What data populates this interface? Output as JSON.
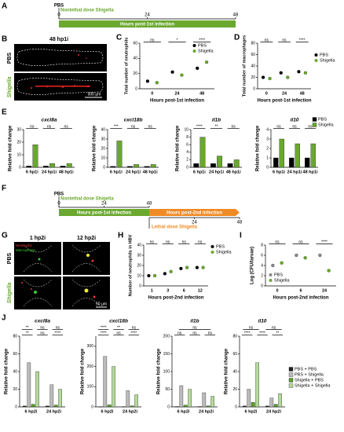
{
  "panel_letters": [
    "A",
    "B",
    "C",
    "D",
    "E",
    "F",
    "G",
    "H",
    "I",
    "J"
  ],
  "timeline_a": {
    "treatment": "PBS",
    "dose": "Nonlethal dose Shigella",
    "range": [
      0,
      48
    ],
    "ticks": [
      0,
      24,
      48
    ],
    "phase": "Hours post-1st infection"
  },
  "image_b": {
    "title": "48 hp1i",
    "rows": [
      "PBS",
      "Shigella"
    ],
    "scale": "500 µm"
  },
  "timeline_f": {
    "treatment": "PBS",
    "dose": "Nonlethal dose Shigella",
    "range": [
      0,
      48
    ],
    "ticks": [
      0,
      24,
      48
    ],
    "phase": "Hours post-1st infection",
    "dose2": "Lethal dose Shigella",
    "ticks2": [
      24,
      48
    ],
    "phase2": "Hours post-2nd infection"
  },
  "image_g": {
    "cols": [
      "1 hp2i",
      "12 hp2i"
    ],
    "rows": [
      "PBS",
      "Shigella"
    ],
    "stains": [
      "Neutrophil",
      "Macrophage"
    ],
    "scale": "50 µm"
  },
  "chart_data": [
    {
      "type": "scatter",
      "ylabel": "Total number of neutrophils",
      "xlabel": "Hours post-1st infection",
      "categories": [
        "0",
        "24",
        "48"
      ],
      "series": [
        {
          "name": "PBS",
          "color": "#000000",
          "values": [
            10,
            22,
            27
          ]
        },
        {
          "name": "Shigella",
          "color": "#6aa82e",
          "values": [
            8,
            18,
            35
          ]
        }
      ],
      "ylim": [
        0,
        60
      ],
      "yticks": [
        0,
        20,
        40,
        60
      ],
      "annotations": [
        "ns",
        "*",
        "****"
      ],
      "legend": true
    },
    {
      "type": "scatter",
      "ylabel": "Total number of macrophages",
      "xlabel": "Hours post-1st infection",
      "categories": [
        "0",
        "24",
        "48"
      ],
      "series": [
        {
          "name": "PBS",
          "color": "#000000",
          "values": [
            20,
            28,
            30
          ]
        },
        {
          "name": "Shigella",
          "color": "#6aa82e",
          "values": [
            18,
            20,
            28
          ]
        }
      ],
      "ylim": [
        0,
        80
      ],
      "yticks": [
        0,
        20,
        40,
        60,
        80
      ],
      "annotations": [
        "ns",
        "ns",
        "****"
      ],
      "legend": true
    },
    {
      "type": "bar",
      "title": "cxcl8a",
      "ylabel": "Relative fold change",
      "categories": [
        "6 hp1i",
        "24 hp1i",
        "48 hp1i"
      ],
      "series": [
        {
          "name": "PBS",
          "color": "#000000",
          "values": [
            1,
            1,
            1
          ]
        },
        {
          "name": "Shigella",
          "color": "#6aa82e",
          "values": [
            18,
            3,
            3
          ]
        }
      ],
      "ylim": [
        0,
        30
      ],
      "yticks": [
        0,
        10,
        20,
        30
      ],
      "annotations": [
        "ns",
        "ns",
        "ns"
      ]
    },
    {
      "type": "bar",
      "title": "cxcl18b",
      "ylabel": "Relative fold change",
      "categories": [
        "6 hp1i",
        "24 hp1i",
        "48 hp1i"
      ],
      "series": [
        {
          "name": "PBS",
          "color": "#000000",
          "values": [
            1,
            1,
            1
          ]
        },
        {
          "name": "Shigella",
          "color": "#6aa82e",
          "values": [
            28,
            3,
            3
          ]
        }
      ],
      "ylim": [
        0,
        40
      ],
      "yticks": [
        0,
        10,
        20,
        30,
        40
      ],
      "annotations": [
        "***",
        "ns",
        "ns"
      ]
    },
    {
      "type": "bar",
      "title": "il1b",
      "ylabel": "Relative fold change",
      "categories": [
        "6 hp1i",
        "24 hp1i",
        "48 hp1i"
      ],
      "series": [
        {
          "name": "PBS",
          "color": "#000000",
          "values": [
            1,
            1,
            1
          ]
        },
        {
          "name": "Shigella",
          "color": "#6aa82e",
          "values": [
            8,
            3,
            2
          ]
        }
      ],
      "ylim": [
        0,
        10
      ],
      "yticks": [
        0,
        2,
        4,
        6,
        8,
        10
      ],
      "annotations": [
        "****",
        "**",
        "ns"
      ]
    },
    {
      "type": "bar",
      "title": "il10",
      "ylabel": "Relative fold change",
      "categories": [
        "6 hp1i",
        "24 hp1i",
        "48 hp1i"
      ],
      "series": [
        {
          "name": "PBS",
          "color": "#000000",
          "values": [
            1,
            1,
            1
          ]
        },
        {
          "name": "Shigella",
          "color": "#6aa82e",
          "values": [
            3,
            2.5,
            2.5
          ]
        }
      ],
      "ylim": [
        0,
        4
      ],
      "yticks": [
        0,
        1,
        2,
        3,
        4
      ],
      "annotations": [
        "ns",
        "ns",
        "ns"
      ],
      "legend": true
    },
    {
      "type": "scatter",
      "ylabel": "Number of neutrophils in HBV",
      "xlabel": "Hours post-2nd infection",
      "categories": [
        "1",
        "3",
        "6",
        "12"
      ],
      "series": [
        {
          "name": "PBS",
          "color": "#000000",
          "values": [
            10,
            12,
            17,
            18
          ]
        },
        {
          "name": "Shigella",
          "color": "#6aa82e",
          "values": [
            10,
            14,
            18,
            18
          ]
        }
      ],
      "ylim": [
        0,
        40
      ],
      "yticks": [
        0,
        10,
        20,
        30,
        40
      ],
      "annotations": [
        "ns",
        "ns",
        "ns",
        "ns"
      ],
      "legend": true
    },
    {
      "type": "scatter",
      "ylabel": "Log (CFU/larvae)",
      "xlabel": "Hours post-2nd infection",
      "categories": [
        "0",
        "6",
        "24"
      ],
      "series": [
        {
          "name": "PBS",
          "color": "#888888",
          "values": [
            4,
            6,
            6
          ]
        },
        {
          "name": "Shigella",
          "color": "#6aa82e",
          "values": [
            4.5,
            5.5,
            3
          ]
        }
      ],
      "ylim": [
        0,
        8
      ],
      "yticks": [
        0,
        2,
        4,
        6,
        8
      ],
      "annotations": [
        "ns",
        "ns",
        "****"
      ],
      "legend": true
    },
    {
      "type": "bar",
      "title": "cxcl8a",
      "ylabel": "Relative fold change",
      "categories": [
        "6 hp2i",
        "24 hp2i"
      ],
      "series": [
        {
          "name": "PBS + PBS",
          "color": "#222222",
          "values": [
            1,
            1
          ]
        },
        {
          "name": "PBS + Shigella",
          "color": "#bbbbbb",
          "values": [
            50,
            25
          ]
        },
        {
          "name": "Shigella + PBS",
          "color": "#5a9e2a",
          "values": [
            3,
            2
          ]
        },
        {
          "name": "Shigella + Shigella",
          "color": "#b5d99c",
          "values": [
            40,
            20
          ]
        }
      ],
      "ylim": [
        0,
        80
      ],
      "yticks": [
        0,
        20,
        40,
        60,
        80
      ],
      "annotations": [
        "**",
        "ns",
        "****",
        "**",
        "ns",
        "ns"
      ]
    },
    {
      "type": "bar",
      "title": "cxcl18b",
      "ylabel": "Relative fold change",
      "categories": [
        "6 hp2i",
        "24 hp2i"
      ],
      "series": [
        {
          "name": "PBS + PBS",
          "color": "#222222",
          "values": [
            1,
            1
          ]
        },
        {
          "name": "PBS + Shigella",
          "color": "#bbbbbb",
          "values": [
            250,
            80
          ]
        },
        {
          "name": "Shigella + PBS",
          "color": "#5a9e2a",
          "values": [
            10,
            5
          ]
        },
        {
          "name": "Shigella + Shigella",
          "color": "#b5d99c",
          "values": [
            200,
            60
          ]
        }
      ],
      "ylim": [
        0,
        350
      ],
      "yticks": [
        0,
        100,
        200,
        300
      ],
      "annotations": [
        "****",
        "ns",
        "****",
        "****",
        "**",
        "ns"
      ]
    },
    {
      "type": "bar",
      "title": "il1b",
      "ylabel": "Relative fold change",
      "categories": [
        "6 hp2i",
        "24 hp2i"
      ],
      "series": [
        {
          "name": "PBS + PBS",
          "color": "#222222",
          "values": [
            1,
            1
          ]
        },
        {
          "name": "PBS + Shigella",
          "color": "#bbbbbb",
          "values": [
            60,
            40
          ]
        },
        {
          "name": "Shigella + PBS",
          "color": "#5a9e2a",
          "values": [
            5,
            3
          ]
        },
        {
          "name": "Shigella + Shigella",
          "color": "#b5d99c",
          "values": [
            50,
            30
          ]
        }
      ],
      "ylim": [
        0,
        200
      ],
      "yticks": [
        0,
        50,
        100,
        150,
        200
      ],
      "annotations": [
        "ns",
        "ns",
        "ns",
        "ns"
      ]
    },
    {
      "type": "bar",
      "title": "il10",
      "ylabel": "Relative fold change",
      "categories": [
        "6 hp2i",
        "24 hp2i"
      ],
      "series": [
        {
          "name": "PBS + PBS",
          "color": "#222222",
          "values": [
            1,
            1
          ]
        },
        {
          "name": "PBS + Shigella",
          "color": "#bbbbbb",
          "values": [
            20,
            10
          ]
        },
        {
          "name": "Shigella + PBS",
          "color": "#5a9e2a",
          "values": [
            5,
            3
          ]
        },
        {
          "name": "Shigella + Shigella",
          "color": "#b5d99c",
          "values": [
            50,
            15
          ]
        }
      ],
      "ylim": [
        0,
        80
      ],
      "yticks": [
        0,
        20,
        40,
        60,
        80
      ],
      "annotations": [
        "****",
        "****",
        "**",
        "ns",
        "ns"
      ],
      "legend": true
    }
  ]
}
